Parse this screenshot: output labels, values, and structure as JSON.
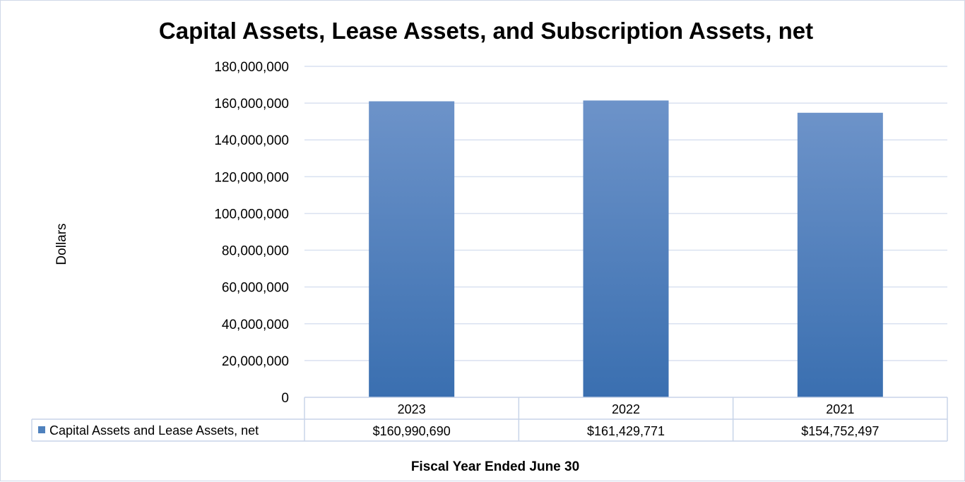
{
  "chart_data": {
    "type": "bar",
    "title": "Capital Assets, Lease Assets, and Subscription Assets, net",
    "ylabel": "Dollars",
    "xlabel": "Fiscal Year Ended June 30",
    "categories": [
      "2023",
      "2022",
      "2021"
    ],
    "series": [
      {
        "name": "Capital Assets and Lease Assets, net",
        "values": [
          160990690,
          161429771,
          154752497
        ],
        "data_labels": [
          "$160,990,690",
          "$161,429,771",
          "$154,752,497"
        ],
        "color": "#4f81bd"
      }
    ],
    "ylim": [
      0,
      180000000
    ],
    "y_ticks": [
      0,
      20000000,
      40000000,
      60000000,
      80000000,
      100000000,
      120000000,
      140000000,
      160000000,
      180000000
    ],
    "y_tick_labels": [
      "0",
      "20,000,000",
      "40,000,000",
      "60,000,000",
      "80,000,000",
      "100,000,000",
      "120,000,000",
      "140,000,000",
      "160,000,000",
      "180,000,000"
    ],
    "grid": true,
    "legend": "data-table",
    "colors": {
      "bar_top": "#6d93c9",
      "bar_bottom": "#3a6fb0",
      "grid": "#d9e1f0",
      "table_border": "#c8d4e8"
    }
  }
}
